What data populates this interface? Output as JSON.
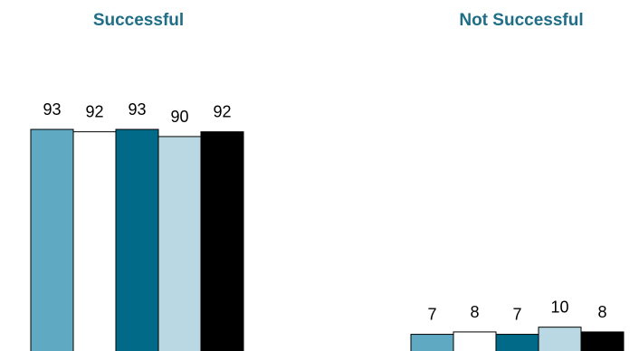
{
  "chart_data": {
    "type": "bar",
    "title": "",
    "xlabel": "",
    "ylabel": "",
    "ylim": [
      0,
      100
    ],
    "grid": false,
    "legend": "none",
    "groups": [
      {
        "label": "Successful",
        "values": [
          93,
          92,
          93,
          90,
          92
        ],
        "value_labels": [
          "93",
          "92",
          "93",
          "90",
          "92"
        ]
      },
      {
        "label": "Not Successful",
        "values": [
          7,
          8,
          7,
          10,
          8
        ],
        "value_labels": [
          "7",
          "8",
          "7",
          "10",
          "8"
        ]
      }
    ],
    "series_colors": [
      "#5fa9c2",
      "#ffffff",
      "#006a88",
      "#b9d8e3",
      "#000000"
    ],
    "title_color": "#1f6e86"
  }
}
